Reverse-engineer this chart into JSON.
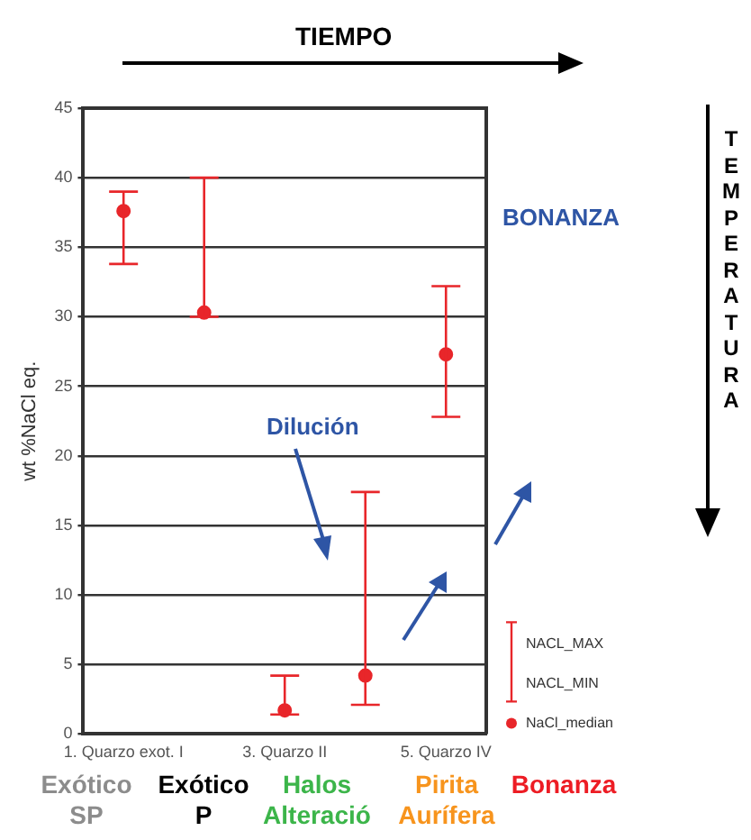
{
  "chart_data": {
    "type": "scatter",
    "ylabel": "wt %NaCl eq.",
    "categories": [
      "1. Quarzo exot. I",
      null,
      "3. Quarzo II",
      null,
      "5. Quarzo IV"
    ],
    "series": [
      {
        "name": "NaCl_median",
        "color": "#e8262a",
        "values": [
          37.6,
          30.3,
          1.7,
          4.2,
          27.3
        ],
        "errors": [
          [
            33.8,
            39
          ],
          [
            30,
            40
          ],
          [
            1.4,
            4.2
          ],
          [
            2.1,
            17.4
          ],
          [
            22.8,
            32.2
          ]
        ]
      }
    ],
    "ylim": [
      0,
      45
    ],
    "yticks": [
      0,
      5,
      10,
      15,
      20,
      25,
      30,
      35,
      40,
      45
    ],
    "grid": "y",
    "legend": "bottom right",
    "marker": "circle",
    "annotations": [
      "TIEMPO",
      "TEMPERATURA",
      "BONANZA",
      "Dilución",
      "NACL_MAX",
      "NACL_MIN",
      "Exótico SP",
      "Exótico P",
      "Halos Alteració",
      "Pirita Aurífera",
      "Bonanza"
    ]
  }
}
